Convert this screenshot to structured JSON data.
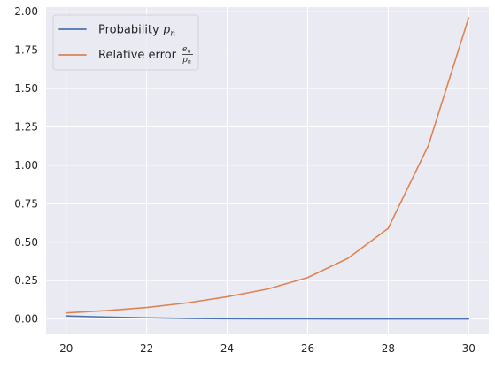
{
  "chart_data": {
    "type": "line",
    "title": "",
    "xlabel": "",
    "ylabel": "",
    "x": [
      20,
      21,
      22,
      23,
      24,
      25,
      26,
      27,
      28,
      29,
      30
    ],
    "xlim": [
      19.5,
      30.5
    ],
    "ylim": [
      -0.1,
      2.03
    ],
    "xticks": [
      20,
      22,
      24,
      26,
      28,
      30
    ],
    "xtick_labels": [
      "20",
      "22",
      "24",
      "26",
      "28",
      "30"
    ],
    "yticks": [
      0.0,
      0.25,
      0.5,
      0.75,
      1.0,
      1.25,
      1.5,
      1.75,
      2.0
    ],
    "ytick_labels": [
      "0.00",
      "0.25",
      "0.50",
      "0.75",
      "1.00",
      "1.25",
      "1.50",
      "1.75",
      "2.00"
    ],
    "grid": true,
    "legend_position": "top-left",
    "series": [
      {
        "name": "Probability p_n",
        "legend_prefix": "Probability ",
        "legend_symbol": "p",
        "legend_sub": "n",
        "color": "#4c72b0",
        "values": [
          0.02,
          0.013,
          0.008,
          0.004,
          0.002,
          0.001,
          0.0007,
          0.0004,
          0.0002,
          0.0001,
          5e-05
        ]
      },
      {
        "name": "Relative error e_n / p_n",
        "legend_prefix": "Relative error ",
        "legend_num": "e",
        "legend_den": "p",
        "legend_sub": "n",
        "color": "#dd8452",
        "values": [
          0.04,
          0.055,
          0.075,
          0.105,
          0.145,
          0.195,
          0.27,
          0.395,
          0.59,
          1.13,
          1.96
        ]
      }
    ]
  }
}
